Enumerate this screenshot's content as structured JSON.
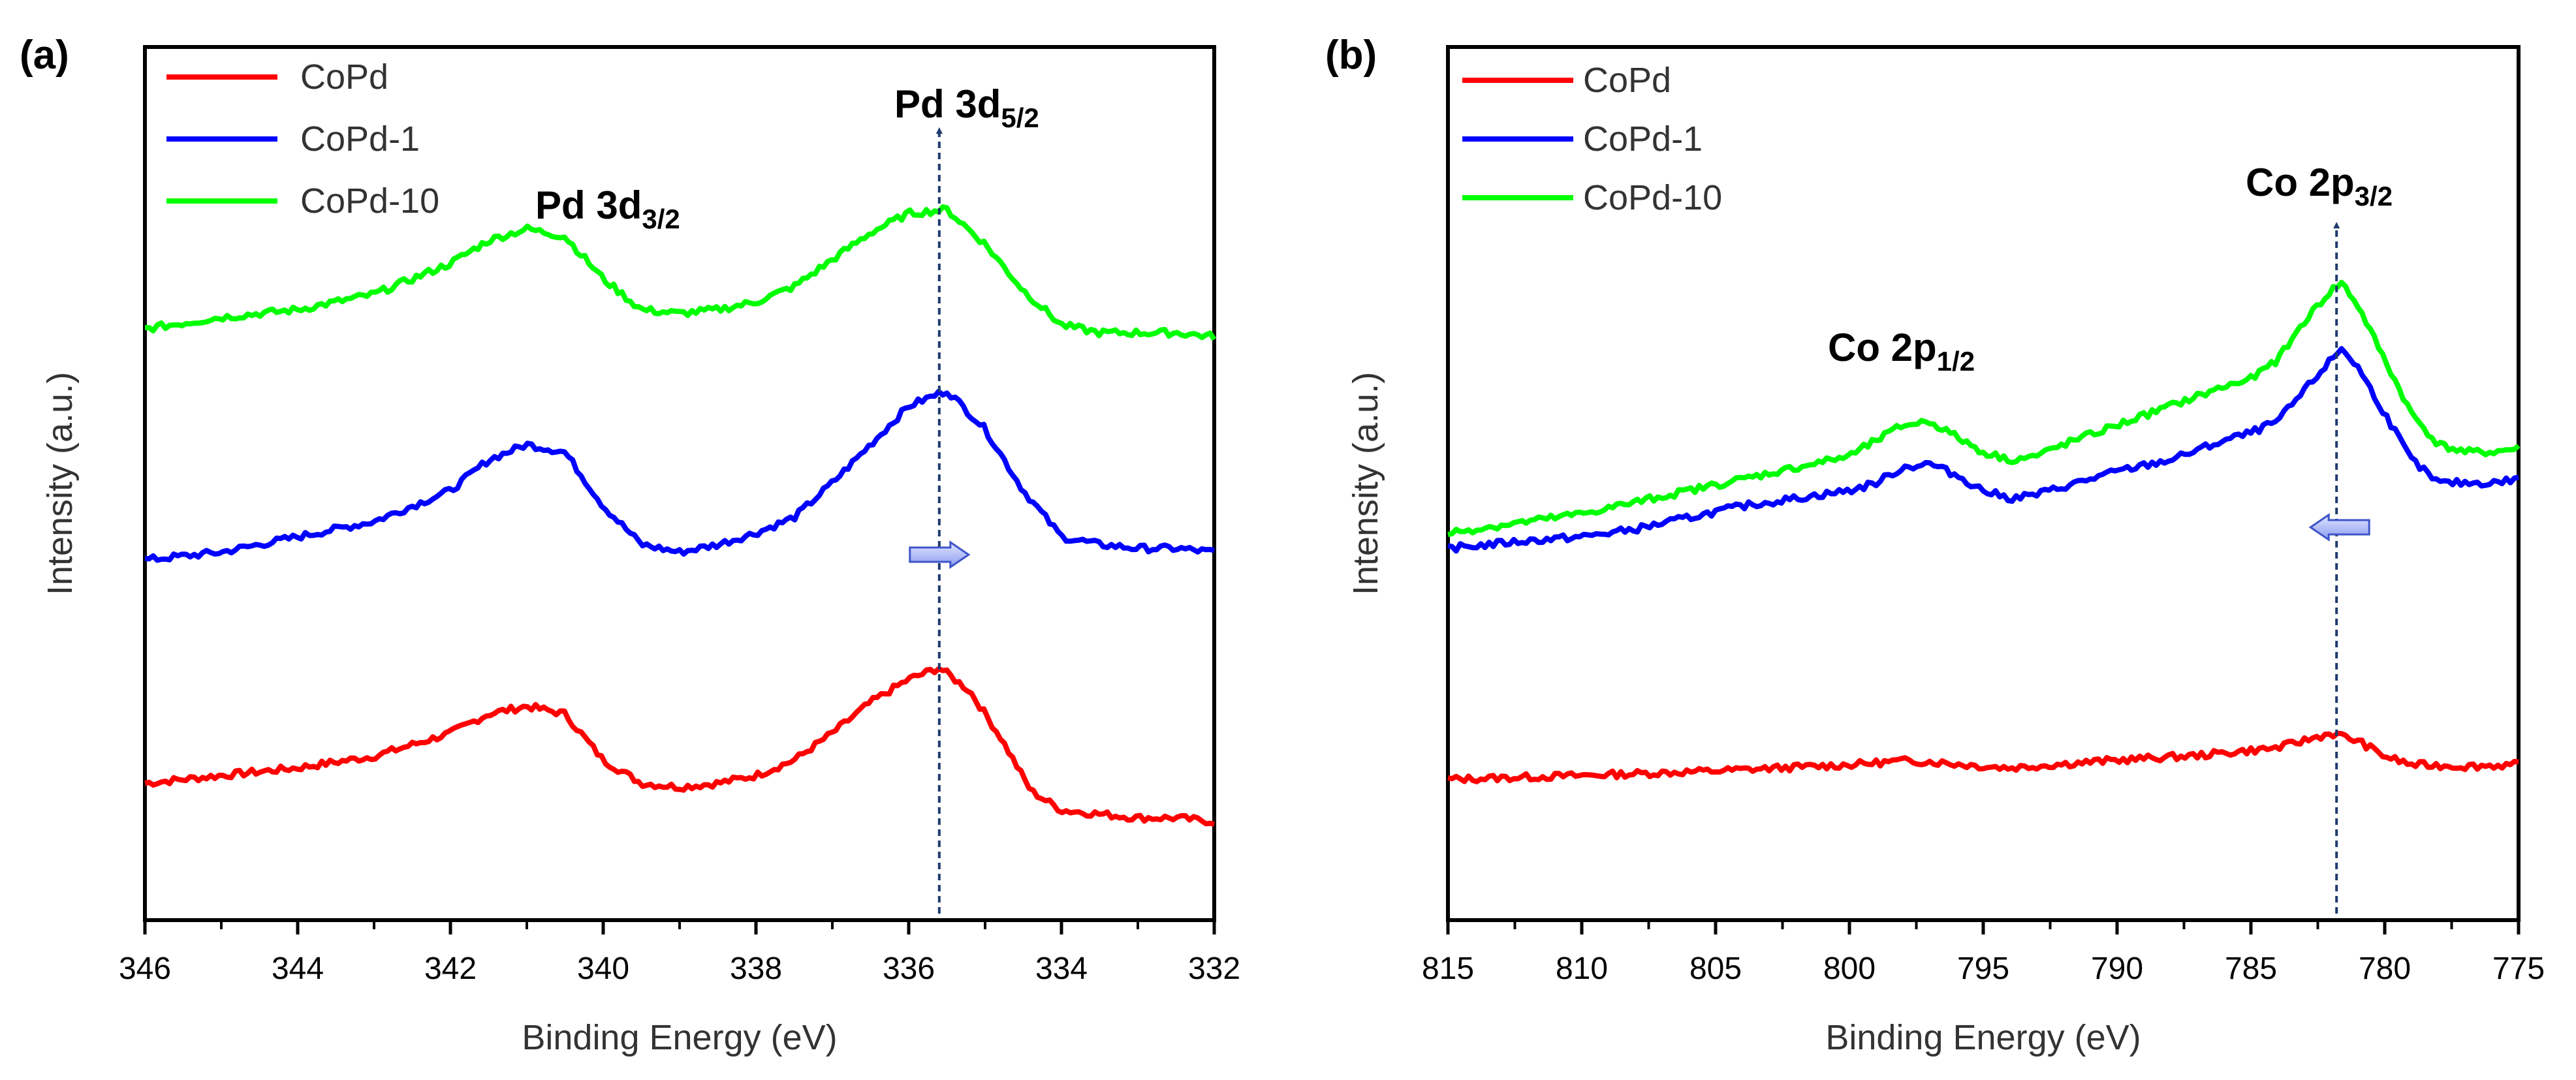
{
  "figure": {
    "panels": [
      {
        "panel_label": "(a)",
        "xlabel": "Binding Energy (eV)",
        "ylabel": "Intensity (a.u.)",
        "legend": [
          "CoPd",
          "CoPd-1",
          "CoPd-10"
        ],
        "peaks": [
          {
            "main": "Pd 3d",
            "sub": "3/2"
          },
          {
            "main": "Pd 3d",
            "sub": "5/2"
          }
        ]
      },
      {
        "panel_label": "(b)",
        "xlabel": "Binding Energy (eV)",
        "ylabel": "Intensity (a.u.)",
        "legend": [
          "CoPd",
          "CoPd-1",
          "CoPd-10"
        ],
        "peaks": [
          {
            "main": "Co 2p",
            "sub": "1/2"
          },
          {
            "main": "Co 2p",
            "sub": "3/2"
          }
        ]
      }
    ]
  },
  "chart_data": [
    {
      "type": "line",
      "panel": "(a)",
      "title": "",
      "xlabel": "Binding Energy (eV)",
      "ylabel": "Intensity (a.u.)",
      "xlim": [
        346,
        332
      ],
      "ylim": [
        0,
        100
      ],
      "xticks": [
        "346",
        "344",
        "342",
        "340",
        "338",
        "336",
        "334",
        "332"
      ],
      "legend_position": "top-left",
      "peak_reference": 335.6,
      "shift_arrow": {
        "direction": "right",
        "at": 335.6
      },
      "series": [
        {
          "name": "CoPd",
          "color": "#ff0000",
          "x": [
            346,
            345,
            344,
            343,
            342,
            341.5,
            341,
            340.5,
            340,
            339.5,
            339,
            338.5,
            338,
            337.5,
            337,
            336.5,
            336,
            335.6,
            335.2,
            334.8,
            334.4,
            334,
            333.5,
            333,
            332.5,
            332
          ],
          "y": [
            11,
            12,
            13,
            14.5,
            17.5,
            20,
            21,
            20,
            14,
            11,
            10.5,
            11,
            12,
            14,
            17.5,
            21.5,
            24.5,
            26,
            23,
            17,
            10,
            7.5,
            7,
            6.5,
            6.5,
            6
          ]
        },
        {
          "name": "CoPd-1",
          "color": "#0000ff",
          "x": [
            346,
            345,
            344,
            343,
            342,
            341.5,
            341,
            340.5,
            340,
            339.5,
            339,
            338.5,
            338,
            337.5,
            337,
            336.5,
            336,
            335.5,
            335,
            334.5,
            334,
            333.5,
            333,
            332.5,
            332
          ],
          "y": [
            40,
            41,
            43,
            45,
            49,
            53,
            55,
            54,
            47,
            42,
            41,
            42,
            43.5,
            45.5,
            50,
            55,
            60,
            62,
            57,
            49,
            43,
            42,
            41.5,
            41.5,
            41
          ]
        },
        {
          "name": "CoPd-10",
          "color": "#00ff00",
          "x": [
            346,
            345,
            344,
            343,
            342,
            341.5,
            341,
            340.5,
            340,
            339.5,
            339,
            338.5,
            338,
            337.5,
            337,
            336.5,
            336,
            335.5,
            335,
            334.5,
            334,
            333.5,
            333,
            332.5,
            332
          ],
          "y": [
            70,
            71.5,
            72.5,
            74.5,
            78.5,
            81.5,
            83,
            82,
            76.5,
            72.5,
            72,
            72.5,
            73.5,
            75.5,
            79,
            82.5,
            85,
            85.5,
            81,
            75,
            70.5,
            69.5,
            69.5,
            69.5,
            69
          ]
        }
      ]
    },
    {
      "type": "line",
      "panel": "(b)",
      "title": "",
      "xlabel": "Binding Energy (eV)",
      "ylabel": "Intensity (a.u.)",
      "xlim": [
        815,
        775
      ],
      "ylim": [
        0,
        100
      ],
      "xticks": [
        "815",
        "810",
        "805",
        "800",
        "795",
        "790",
        "785",
        "780",
        "775"
      ],
      "legend_position": "top-left",
      "peak_reference": 781.8,
      "shift_arrow": {
        "direction": "left",
        "at": 781.8
      },
      "series": [
        {
          "name": "CoPd",
          "color": "#ff0000",
          "x": [
            815,
            810,
            805,
            800,
            798,
            797,
            795,
            794,
            790,
            787,
            784,
            782,
            781,
            780,
            779,
            777,
            775
          ],
          "y": [
            11.5,
            12,
            12.6,
            13.4,
            13.9,
            13.8,
            13.2,
            13,
            14,
            14.6,
            15.6,
            17.5,
            16.5,
            14.5,
            13.4,
            13.2,
            13.4
          ]
        },
        {
          "name": "CoPd-1",
          "color": "#0000ff",
          "x": [
            815,
            812,
            810,
            808,
            806,
            804,
            802,
            800,
            799,
            798,
            797,
            796,
            795,
            794,
            793,
            792,
            790,
            788,
            786,
            785,
            784,
            783,
            782,
            781.6,
            781,
            780,
            779,
            778,
            777,
            776,
            775
          ],
          "y": [
            41.5,
            42.5,
            43,
            44,
            45.5,
            47,
            48,
            49,
            50,
            52,
            52.5,
            51,
            49,
            48,
            48.5,
            49.5,
            51.5,
            53,
            55.5,
            56.5,
            58,
            62,
            66,
            67.5,
            65,
            59,
            53,
            50,
            50,
            50,
            50.5
          ]
        },
        {
          "name": "CoPd-10",
          "color": "#00ff00",
          "x": [
            815,
            812,
            810,
            808,
            806,
            804,
            802,
            800,
            799,
            798,
            797,
            796,
            795,
            794,
            793,
            792,
            790,
            788,
            786,
            785,
            784,
            783,
            782,
            781.6,
            781,
            780,
            779,
            778,
            777,
            776,
            775
          ],
          "y": [
            43.5,
            45,
            46,
            47.5,
            49,
            50.5,
            52,
            53.5,
            55.5,
            57.5,
            58,
            56,
            54,
            53,
            53.5,
            55,
            57.5,
            60,
            62.5,
            63.5,
            66,
            71,
            75,
            76,
            73,
            66,
            59,
            55,
            54,
            54,
            54.5
          ]
        }
      ]
    }
  ]
}
